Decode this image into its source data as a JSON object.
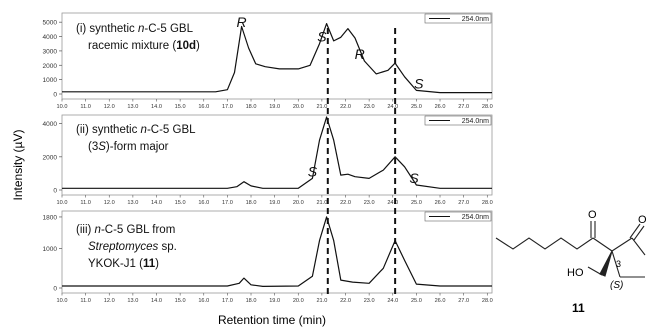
{
  "figure": {
    "ylabel": "Intensity (µV)",
    "xlabel": "Retention time (min)",
    "dashed_lines_at": [
      21.25,
      24.1
    ],
    "x_ticks": [
      "10.0",
      "11.0",
      "12.0",
      "13.0",
      "14.0",
      "15.0",
      "16.0",
      "17.0",
      "18.0",
      "19.0",
      "20.0",
      "21.0",
      "22.0",
      "23.0",
      "24.0",
      "25.0",
      "26.0",
      "27.0",
      "28.0"
    ]
  },
  "chart_data": [
    {
      "type": "line",
      "title_lines": [
        [
          {
            "t": "(i) synthetic "
          },
          {
            "t": "n",
            "i": true
          },
          {
            "t": "-C-5 GBL"
          }
        ],
        [
          {
            "t": "racemic mixture ("
          },
          {
            "t": "10d",
            "b": true
          },
          {
            "t": ")"
          }
        ]
      ],
      "legend": "254.0nm",
      "y_ticks": [
        "5000",
        "4000",
        "3000",
        "2000",
        "1000",
        "0"
      ],
      "ylim": [
        0,
        5500
      ],
      "xlim": [
        10,
        28.2
      ],
      "peaks": [
        {
          "label": "R",
          "x": 17.6
        },
        {
          "label": "S",
          "x": 21.0
        },
        {
          "label": "R",
          "x": 22.6
        },
        {
          "label": "S",
          "x": 25.1
        }
      ],
      "x": [
        10.0,
        16.5,
        17.0,
        17.3,
        17.6,
        17.9,
        18.2,
        18.6,
        19.2,
        20.0,
        20.5,
        20.9,
        21.2,
        21.5,
        21.8,
        22.1,
        22.4,
        22.8,
        23.3,
        23.8,
        24.1,
        24.5,
        25.0,
        26.0,
        28.2
      ],
      "y": [
        150,
        150,
        300,
        1500,
        4700,
        3200,
        2100,
        1900,
        1750,
        1750,
        2000,
        3500,
        4900,
        3700,
        3950,
        4550,
        3900,
        2300,
        1400,
        1650,
        2150,
        1200,
        250,
        100,
        100
      ]
    },
    {
      "type": "line",
      "title_lines": [
        [
          {
            "t": "(ii) synthetic "
          },
          {
            "t": "n",
            "i": true
          },
          {
            "t": "-C-5 GBL"
          }
        ],
        [
          {
            "t": "(3"
          },
          {
            "t": "S",
            "i": true
          },
          {
            "t": ")-form major"
          }
        ]
      ],
      "legend": "254.0nm",
      "y_ticks": [
        "4000",
        "2000",
        "0"
      ],
      "ylim": [
        0,
        4400
      ],
      "xlim": [
        10,
        28.2
      ],
      "peaks": [
        {
          "label": "S",
          "x": 20.6
        },
        {
          "label": "S",
          "x": 24.9
        }
      ],
      "x": [
        10.0,
        17.0,
        17.4,
        17.7,
        18.0,
        18.5,
        20.0,
        20.6,
        20.9,
        21.2,
        21.5,
        21.8,
        22.1,
        22.4,
        23.0,
        23.6,
        24.1,
        24.5,
        25.0,
        26.0,
        28.2
      ],
      "y": [
        100,
        100,
        200,
        500,
        250,
        100,
        100,
        700,
        3000,
        4400,
        3000,
        900,
        950,
        800,
        700,
        1200,
        2000,
        1400,
        300,
        100,
        100
      ]
    },
    {
      "type": "line",
      "title_lines": [
        [
          {
            "t": "(iii) "
          },
          {
            "t": "n",
            "i": true
          },
          {
            "t": "-C-5 GBL from"
          }
        ],
        [
          {
            "t": "Streptomyces",
            "i": true
          },
          {
            "t": " sp."
          }
        ],
        [
          {
            "t": "YKOK-J1 ("
          },
          {
            "t": "11",
            "b": true
          },
          {
            "t": ")"
          }
        ]
      ],
      "legend": "254.0nm",
      "y_ticks": [
        "1800",
        "1000",
        "0"
      ],
      "ylim": [
        0,
        1900
      ],
      "xlim": [
        10,
        28.2
      ],
      "peaks": [],
      "x": [
        10.0,
        17.0,
        17.5,
        17.7,
        18.0,
        18.5,
        20.0,
        20.6,
        20.9,
        21.2,
        21.5,
        21.8,
        22.3,
        23.0,
        23.6,
        24.1,
        24.5,
        25.0,
        26.0,
        28.2
      ],
      "y": [
        50,
        50,
        120,
        250,
        80,
        40,
        50,
        300,
        1200,
        1800,
        1200,
        200,
        150,
        120,
        500,
        1200,
        700,
        100,
        50,
        50
      ]
    }
  ],
  "structure": {
    "compound_number": "11",
    "atom_labels": {
      "o_ketone": "O",
      "o_ring": "O",
      "ho": "HO",
      "stereo_num": "3",
      "stereo": "(S)"
    }
  }
}
